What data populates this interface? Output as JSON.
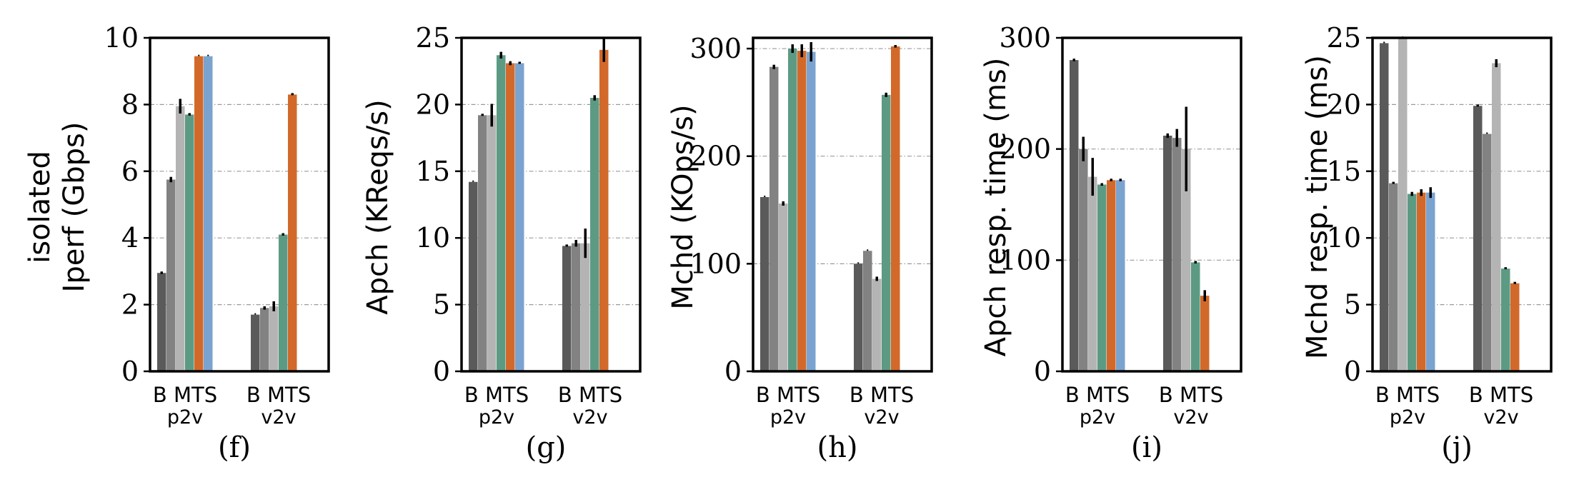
{
  "colors": {
    "bar_series": [
      "#5a5a5a",
      "#828282",
      "#b4b4b4",
      "#5d9a84",
      "#d2692a",
      "#7ba3cf"
    ],
    "error_bar": "#000000",
    "grid": "#9a9a9a"
  },
  "chart_data": [
    {
      "type": "bar",
      "panel": "(f)",
      "ylabel_lines": [
        "isolated",
        "Iperf (Gbps)"
      ],
      "ylim": [
        0,
        10
      ],
      "yticks": [
        "0",
        "2",
        "4",
        "6",
        "8",
        "10"
      ],
      "ytick_values": [
        0,
        2,
        4,
        6,
        8,
        10
      ],
      "grid": "horizontal dash-dot",
      "groups": [
        {
          "name": "p2v",
          "bar_labels": "B MTS",
          "values": [
            2.95,
            5.75,
            7.95,
            7.7,
            9.45,
            9.45
          ],
          "errors": [
            0.03,
            0.08,
            0.22,
            0.03,
            0.0,
            0.0
          ]
        },
        {
          "name": "v2v",
          "bar_labels": "B MTS",
          "values": [
            1.7,
            1.9,
            1.95,
            4.1,
            8.3,
            null
          ],
          "errors": [
            0.0,
            0.05,
            0.15,
            0.03,
            0.02,
            null
          ]
        }
      ]
    },
    {
      "type": "bar",
      "panel": "(g)",
      "ylabel_lines": [
        "Apch (KReqs/s)"
      ],
      "ylim": [
        0,
        25
      ],
      "yticks": [
        "0",
        "5",
        "10",
        "15",
        "20",
        "25"
      ],
      "ytick_values": [
        0,
        5,
        10,
        15,
        20,
        25
      ],
      "grid": "horizontal dash-dot",
      "groups": [
        {
          "name": "p2v",
          "bar_labels": "B MTS",
          "values": [
            14.2,
            19.2,
            19.2,
            23.7,
            23.1,
            23.1
          ],
          "errors": [
            0.0,
            0.05,
            0.85,
            0.25,
            0.15,
            0.05
          ]
        },
        {
          "name": "v2v",
          "bar_labels": "B MTS",
          "values": [
            9.4,
            9.6,
            9.6,
            20.5,
            24.1,
            null
          ],
          "errors": [
            0.05,
            0.25,
            1.1,
            0.2,
            0.9,
            null
          ]
        }
      ]
    },
    {
      "type": "bar",
      "panel": "(h)",
      "ylabel_lines": [
        "Mchd (KOps/s)"
      ],
      "ylim": [
        0,
        310
      ],
      "yticks": [
        "0",
        "100",
        "200",
        "300"
      ],
      "ytick_values": [
        0,
        100,
        200,
        300
      ],
      "grid": "horizontal dash-dot",
      "groups": [
        {
          "name": "p2v",
          "bar_labels": "B MTS",
          "values": [
            162,
            283,
            156,
            300,
            298,
            297
          ],
          "errors": [
            0.0,
            2.0,
            2.0,
            4.0,
            6.0,
            9.0
          ]
        },
        {
          "name": "v2v",
          "bar_labels": "B MTS",
          "values": [
            100,
            112,
            86,
            257,
            302,
            null
          ],
          "errors": [
            0.0,
            0.0,
            2.0,
            2.0,
            1.0,
            null
          ]
        }
      ]
    },
    {
      "type": "bar",
      "panel": "(i)",
      "ylabel_lines": [
        "Apch resp. time (ms)"
      ],
      "ylim": [
        0,
        300
      ],
      "yticks": [
        "0",
        "100",
        "200",
        "300"
      ],
      "ytick_values": [
        0,
        100,
        200,
        300
      ],
      "grid": "horizontal dash-dot",
      "groups": [
        {
          "name": "p2v",
          "bar_labels": "B MTS",
          "values": [
            280,
            200,
            175,
            168,
            172,
            172
          ],
          "errors": [
            1.0,
            11.0,
            17.0,
            1.0,
            1.0,
            1.0
          ]
        },
        {
          "name": "v2v",
          "bar_labels": "B MTS",
          "values": [
            212,
            210,
            200,
            98,
            68,
            null
          ],
          "errors": [
            2.0,
            8.0,
            38.0,
            1.0,
            5.0,
            null
          ]
        }
      ]
    },
    {
      "type": "bar",
      "panel": "(j)",
      "ylabel_lines": [
        "Mchd resp. time (ms)"
      ],
      "ylim": [
        0,
        25
      ],
      "yticks": [
        "0",
        "5",
        "10",
        "15",
        "20",
        "25"
      ],
      "ytick_values": [
        0,
        5,
        10,
        15,
        20,
        25
      ],
      "grid": "horizontal dash-dot",
      "groups": [
        {
          "name": "p2v",
          "bar_labels": "B MTS",
          "values": [
            24.6,
            14.1,
            25.0,
            13.3,
            13.4,
            13.4
          ],
          "errors": [
            0.0,
            0.05,
            0.0,
            0.15,
            0.25,
            0.4
          ]
        },
        {
          "name": "v2v",
          "bar_labels": "B MTS",
          "values": [
            19.9,
            17.8,
            23.1,
            7.7,
            6.6,
            null
          ],
          "errors": [
            0.05,
            0.0,
            0.3,
            0.05,
            0.05,
            null
          ]
        }
      ]
    }
  ]
}
